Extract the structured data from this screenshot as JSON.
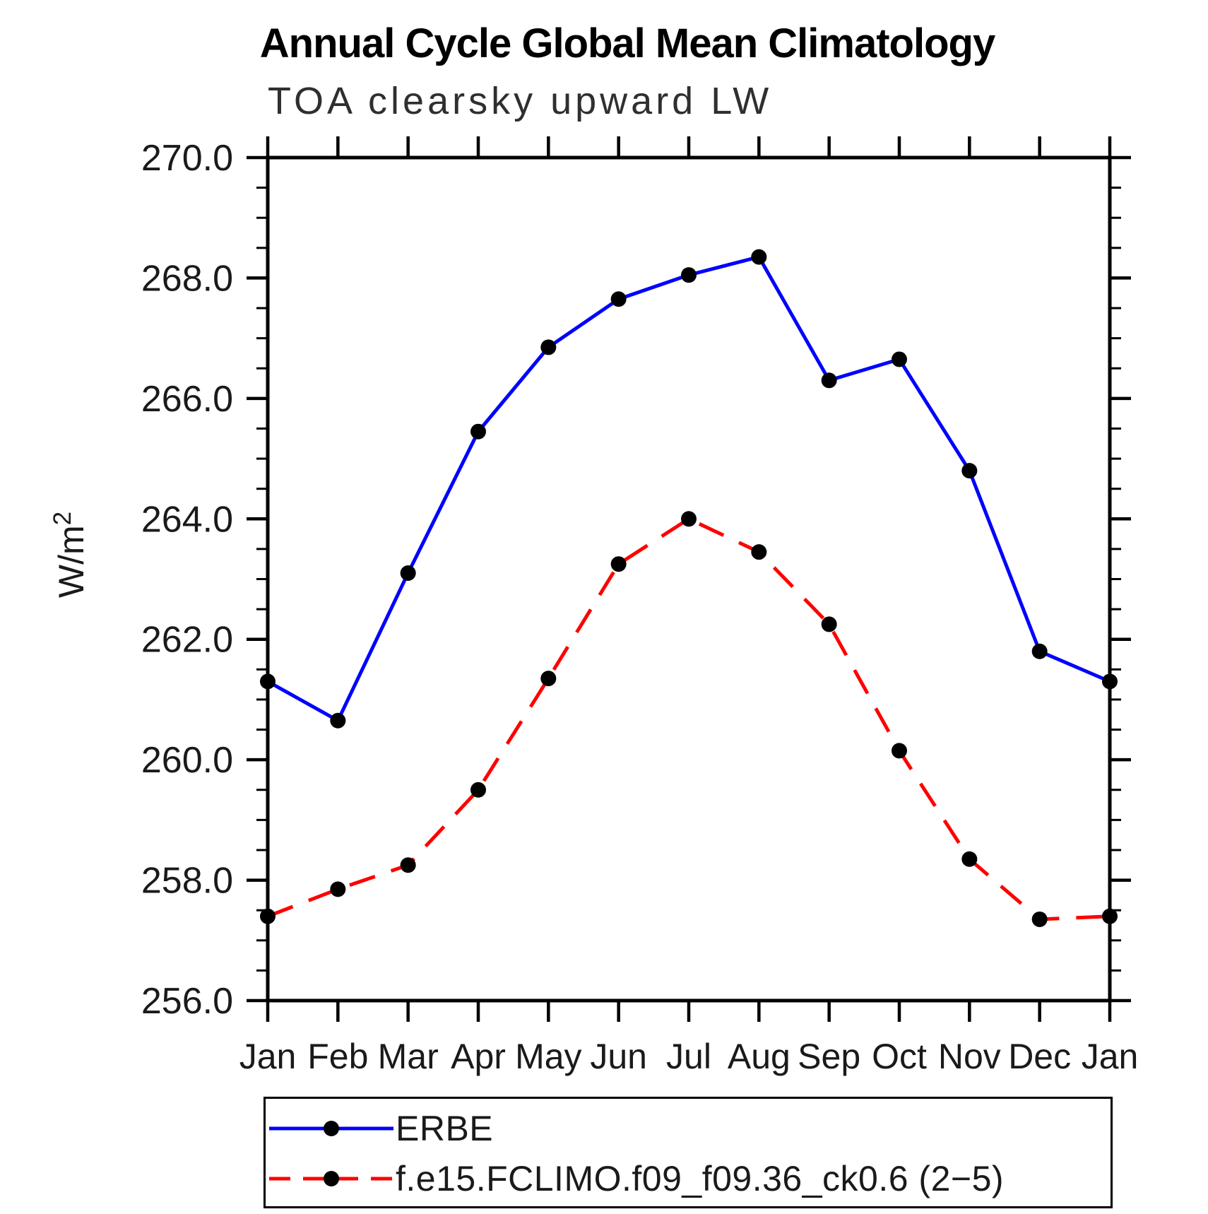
{
  "chart_data": {
    "type": "line",
    "title": "Annual Cycle Global Mean Climatology",
    "subtitle": "TOA clearsky upward LW",
    "ylabel": "W/m²",
    "xlabel": "",
    "ylim": [
      256.0,
      270.0
    ],
    "ytick_step": 2.0,
    "ytick_minor_step": 0.5,
    "grid": false,
    "legend_position": "bottom",
    "axis_color": "#000000",
    "marker_color": "#000000",
    "categories": [
      "Jan",
      "Feb",
      "Mar",
      "Apr",
      "May",
      "Jun",
      "Jul",
      "Aug",
      "Sep",
      "Oct",
      "Nov",
      "Dec",
      "Jan"
    ],
    "series": [
      {
        "name": "ERBE",
        "color": "#0000ff",
        "style": "solid",
        "marker": "circle",
        "values": [
          261.3,
          260.65,
          263.1,
          265.45,
          266.85,
          267.65,
          268.05,
          268.35,
          266.3,
          266.65,
          264.8,
          261.8,
          261.3
        ]
      },
      {
        "name": "f.e15.FCLIMO.f09_f09.36_ck0.6 (2−5)",
        "color": "#ff0000",
        "style": "dashed",
        "marker": "circle",
        "values": [
          257.4,
          257.85,
          258.25,
          259.5,
          261.35,
          263.25,
          264.0,
          263.45,
          262.25,
          260.15,
          258.35,
          257.35,
          257.4
        ]
      }
    ]
  }
}
